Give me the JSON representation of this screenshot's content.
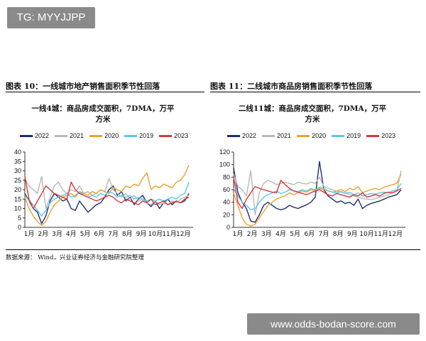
{
  "watermark_top": "TG: MYYJJPP",
  "watermark_bottom": "www.odds-bodan-score.com",
  "figure_left_title": "图表 10：一线城市地产销售面积季节性回落",
  "figure_right_title": "图表 11：二线城市商品房销售面积季节性回落",
  "source": "数据来源：   Wind，兴业证券经济与金融研究院整理",
  "colors": {
    "2022": "#1f2f6e",
    "2021": "#b8b8b8",
    "2020": "#f0a030",
    "2019": "#5bc8ea",
    "2023": "#d93838"
  },
  "chart_data": [
    {
      "type": "line",
      "title_line1": "一线4城：商品房成交面积，7DMA，万平",
      "title_line2": "方米",
      "ylim": [
        0,
        40
      ],
      "yticks": [
        "0",
        "5",
        "10",
        "15",
        "20",
        "25",
        "30",
        "35",
        "40"
      ],
      "xticks": [
        "1月",
        "2月",
        "3月",
        "4月",
        "5月",
        "6月",
        "7月",
        "8月",
        "9月",
        "10月",
        "11月",
        "12月"
      ],
      "legend": [
        "2022",
        "2021",
        "2020",
        "2019",
        "2023"
      ],
      "series": [
        {
          "name": "2022",
          "x": [
            1,
            1.3,
            1.6,
            1.9,
            2.2,
            2.5,
            2.8,
            3.1,
            3.4,
            3.7,
            4,
            4.3,
            4.6,
            4.9,
            5.2,
            5.5,
            5.8,
            6.1,
            6.4,
            6.7,
            7,
            7.3,
            7.6,
            7.9,
            8.2,
            8.5,
            8.8,
            9.1,
            9.4,
            9.7,
            10,
            10.3,
            10.6,
            10.9,
            11.2,
            11.5,
            11.8,
            12.1,
            12.4,
            12.7
          ],
          "y": [
            18,
            14,
            10,
            8,
            2,
            6,
            14,
            18,
            16,
            14,
            15,
            10,
            9,
            14,
            11,
            8,
            10,
            12,
            13,
            16,
            20,
            22,
            17,
            19,
            14,
            16,
            12,
            15,
            17,
            13,
            11,
            14,
            10,
            13,
            15,
            12,
            14,
            13,
            14,
            18
          ]
        },
        {
          "name": "2021",
          "x": [
            1,
            1.3,
            1.6,
            1.9,
            2.2,
            2.5,
            2.8,
            3.1,
            3.4,
            3.7,
            4,
            4.3,
            4.6,
            4.9,
            5.2,
            5.5,
            5.8,
            6.1,
            6.4,
            6.7,
            7,
            7.3,
            7.6,
            7.9,
            8.2,
            8.5,
            8.8,
            9.1,
            9.4,
            9.7,
            10,
            10.3,
            10.6,
            10.9,
            11.2,
            11.5,
            11.8,
            12.1,
            12.4,
            12.7
          ],
          "y": [
            26,
            22,
            20,
            18,
            27,
            10,
            16,
            22,
            24,
            20,
            18,
            20,
            19,
            22,
            18,
            19,
            17,
            18,
            20,
            19,
            26,
            20,
            18,
            16,
            18,
            15,
            17,
            14,
            15,
            13,
            12,
            14,
            12,
            13,
            12,
            14,
            13,
            15,
            16,
            17
          ]
        },
        {
          "name": "2020",
          "x": [
            1,
            1.3,
            1.6,
            1.9,
            2.2,
            2.5,
            2.8,
            3.1,
            3.4,
            3.7,
            4,
            4.3,
            4.6,
            4.9,
            5.2,
            5.5,
            5.8,
            6.1,
            6.4,
            6.7,
            7,
            7.3,
            7.6,
            7.9,
            8.2,
            8.5,
            8.8,
            9.1,
            9.4,
            9.7,
            10,
            10.3,
            10.6,
            10.9,
            11.2,
            11.5,
            11.8,
            12.1,
            12.4,
            12.7
          ],
          "y": [
            16,
            10,
            6,
            3,
            1,
            3,
            8,
            12,
            14,
            16,
            17,
            18,
            16,
            19,
            18,
            17,
            19,
            18,
            20,
            19,
            18,
            21,
            20,
            19,
            22,
            21,
            23,
            22,
            26,
            29,
            20,
            22,
            21,
            23,
            22,
            21,
            24,
            25,
            28,
            33
          ]
        },
        {
          "name": "2019",
          "x": [
            1,
            1.3,
            1.6,
            1.9,
            2.2,
            2.5,
            2.8,
            3.1,
            3.4,
            3.7,
            4,
            4.3,
            4.6,
            4.9,
            5.2,
            5.5,
            5.8,
            6.1,
            6.4,
            6.7,
            7,
            7.3,
            7.6,
            7.9,
            8.2,
            8.5,
            8.8,
            9.1,
            9.4,
            9.7,
            10,
            10.3,
            10.6,
            10.9,
            11.2,
            11.5,
            11.8,
            12.1,
            12.4,
            12.7
          ],
          "y": [
            17,
            14,
            12,
            9,
            6,
            9,
            13,
            15,
            16,
            17,
            18,
            16,
            17,
            19,
            17,
            16,
            17,
            16,
            18,
            17,
            19,
            18,
            16,
            17,
            16,
            17,
            15,
            16,
            15,
            14,
            15,
            14,
            15,
            14,
            15,
            16,
            15,
            17,
            18,
            24
          ]
        },
        {
          "name": "2023",
          "x": [
            1,
            1.3,
            1.6,
            1.9,
            2.2,
            2.5,
            2.8,
            3.1,
            3.4,
            3.7,
            4,
            4.3,
            4.6,
            4.9,
            5.2,
            5.5,
            5.8,
            6.1,
            6.4,
            6.7,
            7,
            7.3,
            7.6,
            7.9,
            8.2,
            8.5,
            8.8,
            9.1,
            9.4,
            9.7,
            10,
            10.3,
            10.6,
            10.9,
            11.2,
            11.5,
            11.8,
            12.1,
            12.4,
            12.7
          ],
          "y": [
            27,
            15,
            10,
            14,
            18,
            22,
            20,
            18,
            17,
            16,
            15,
            24,
            20,
            18,
            17,
            16,
            15,
            14,
            15,
            16,
            17,
            16,
            14,
            13,
            15,
            14,
            13,
            12,
            14,
            13,
            15,
            12,
            13,
            14,
            12,
            13,
            14,
            13,
            15,
            16
          ]
        }
      ]
    },
    {
      "type": "line",
      "title_line1": "二线11城：商品房成交面积，7DMA，万平",
      "title_line2": "方米",
      "ylim": [
        0,
        120
      ],
      "yticks": [
        "0",
        "20",
        "40",
        "60",
        "80",
        "100",
        "120"
      ],
      "xticks": [
        "1月",
        "2月",
        "3月",
        "4月",
        "5月",
        "6月",
        "7月",
        "8月",
        "9月",
        "10月",
        "11月",
        "12月"
      ],
      "legend": [
        "2022",
        "2021",
        "2020",
        "2019",
        "2023"
      ],
      "series": [
        {
          "name": "2022",
          "x": [
            1,
            1.3,
            1.6,
            1.9,
            2.2,
            2.5,
            2.8,
            3.1,
            3.4,
            3.7,
            4,
            4.3,
            4.6,
            4.9,
            5.2,
            5.5,
            5.8,
            6.1,
            6.4,
            6.7,
            7,
            7.3,
            7.6,
            7.9,
            8.2,
            8.5,
            8.8,
            9.1,
            9.4,
            9.7,
            10,
            10.3,
            10.6,
            10.9,
            11.2,
            11.5,
            11.8,
            12.1,
            12.4,
            12.7
          ],
          "y": [
            95,
            55,
            40,
            30,
            10,
            8,
            20,
            35,
            40,
            35,
            30,
            28,
            30,
            35,
            32,
            30,
            33,
            36,
            40,
            48,
            105,
            60,
            50,
            45,
            40,
            42,
            38,
            40,
            35,
            45,
            30,
            35,
            38,
            40,
            42,
            45,
            48,
            50,
            52,
            60
          ]
        },
        {
          "name": "2021",
          "x": [
            1,
            1.3,
            1.6,
            1.9,
            2.2,
            2.5,
            2.8,
            3.1,
            3.4,
            3.7,
            4,
            4.3,
            4.6,
            4.9,
            5.2,
            5.5,
            5.8,
            6.1,
            6.4,
            6.7,
            7,
            7.3,
            7.6,
            7.9,
            8.2,
            8.5,
            8.8,
            9.1,
            9.4,
            9.7,
            10,
            10.3,
            10.6,
            10.9,
            11.2,
            11.5,
            11.8,
            12.1,
            12.4,
            12.7
          ],
          "y": [
            85,
            65,
            60,
            50,
            90,
            20,
            55,
            70,
            75,
            72,
            68,
            70,
            72,
            70,
            68,
            72,
            70,
            69,
            72,
            70,
            80,
            65,
            62,
            60,
            58,
            56,
            55,
            52,
            50,
            48,
            46,
            45,
            44,
            46,
            48,
            50,
            52,
            55,
            58,
            90
          ]
        },
        {
          "name": "2020",
          "x": [
            1,
            1.3,
            1.6,
            1.9,
            2.2,
            2.5,
            2.8,
            3.1,
            3.4,
            3.7,
            4,
            4.3,
            4.6,
            4.9,
            5.2,
            5.5,
            5.8,
            6.1,
            6.4,
            6.7,
            7,
            7.3,
            7.6,
            7.9,
            8.2,
            8.5,
            8.8,
            9.1,
            9.4,
            9.7,
            10,
            10.3,
            10.6,
            10.9,
            11.2,
            11.5,
            11.8,
            12.1,
            12.4,
            12.7
          ],
          "y": [
            55,
            35,
            15,
            5,
            2,
            5,
            15,
            25,
            35,
            40,
            45,
            48,
            50,
            55,
            52,
            55,
            58,
            56,
            60,
            58,
            62,
            60,
            58,
            56,
            58,
            60,
            57,
            62,
            60,
            65,
            55,
            58,
            60,
            62,
            60,
            64,
            66,
            68,
            70,
            85
          ]
        },
        {
          "name": "2019",
          "x": [
            1,
            1.3,
            1.6,
            1.9,
            2.2,
            2.5,
            2.8,
            3.1,
            3.4,
            3.7,
            4,
            4.3,
            4.6,
            4.9,
            5.2,
            5.5,
            5.8,
            6.1,
            6.4,
            6.7,
            7,
            7.3,
            7.6,
            7.9,
            8.2,
            8.5,
            8.8,
            9.1,
            9.4,
            9.7,
            10,
            10.3,
            10.6,
            10.9,
            11.2,
            11.5,
            11.8,
            12.1,
            12.4,
            12.7
          ],
          "y": [
            62,
            50,
            40,
            35,
            28,
            30,
            40,
            48,
            52,
            55,
            58,
            54,
            56,
            60,
            58,
            57,
            60,
            58,
            62,
            60,
            64,
            62,
            58,
            56,
            55,
            57,
            54,
            56,
            52,
            55,
            50,
            52,
            54,
            53,
            55,
            56,
            55,
            58,
            60,
            70
          ]
        },
        {
          "name": "2023",
          "x": [
            1,
            1.3,
            1.6,
            1.9,
            2.2,
            2.5,
            2.8,
            3.1,
            3.4,
            3.7,
            4,
            4.3,
            4.6,
            4.9,
            5.2,
            5.5,
            5.8,
            6.1,
            6.4,
            6.7,
            7,
            7.3,
            7.6,
            7.9,
            8.2,
            8.5,
            8.8,
            9.1,
            9.4,
            9.7,
            10,
            10.3,
            10.6,
            10.9,
            11.2,
            11.5,
            11.8,
            12.1,
            12.4,
            12.7
          ],
          "y": [
            80,
            40,
            30,
            45,
            55,
            65,
            62,
            60,
            58,
            56,
            55,
            75,
            68,
            62,
            58,
            56,
            54,
            52,
            55,
            58,
            60,
            56,
            52,
            50,
            54,
            52,
            50,
            48,
            52,
            50,
            55,
            48,
            50,
            52,
            50,
            54,
            56,
            55,
            58,
            62
          ]
        }
      ]
    }
  ]
}
